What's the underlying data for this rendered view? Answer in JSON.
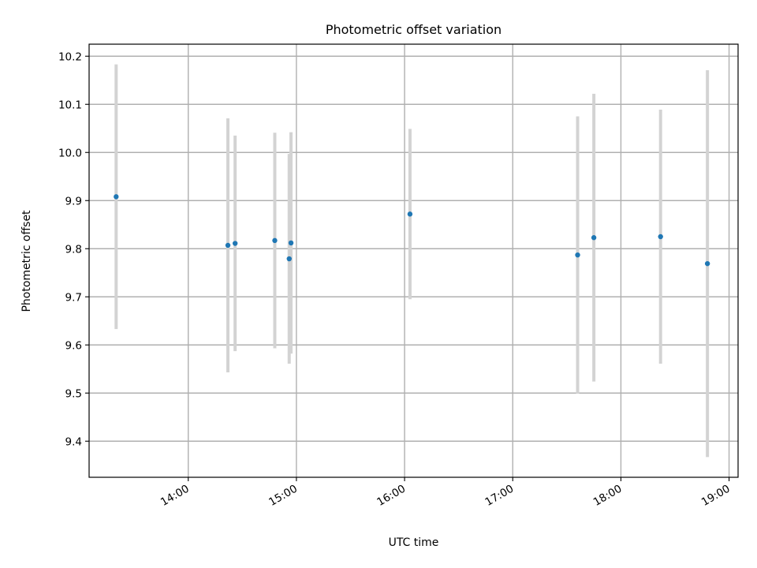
{
  "chart_data": {
    "type": "scatter",
    "title": "Photometric offset variation",
    "xlabel": "UTC time",
    "ylabel": "Photometric offset",
    "x_ticks": [
      "14:00",
      "15:00",
      "16:00",
      "17:00",
      "18:00",
      "19:00"
    ],
    "y_ticks": [
      "9.4",
      "9.5",
      "9.6",
      "9.7",
      "9.8",
      "9.9",
      "10.0",
      "10.1",
      "10.2"
    ],
    "xlim": [
      "13:05",
      "19:05"
    ],
    "ylim": [
      9.325,
      10.225
    ],
    "grid": true,
    "error_bar_color": "#d3d3d3",
    "marker_color": "#1f77b4",
    "points": [
      {
        "time": "13:20",
        "y": 9.908,
        "err_low": 9.633,
        "err_high": 10.183
      },
      {
        "time": "14:22",
        "y": 9.807,
        "err_low": 9.543,
        "err_high": 10.071
      },
      {
        "time": "14:26",
        "y": 9.811,
        "err_low": 9.587,
        "err_high": 10.035
      },
      {
        "time": "14:48",
        "y": 9.817,
        "err_low": 9.593,
        "err_high": 10.041
      },
      {
        "time": "14:56",
        "y": 9.779,
        "err_low": 9.561,
        "err_high": 9.997
      },
      {
        "time": "14:57",
        "y": 9.812,
        "err_low": 9.582,
        "err_high": 10.042
      },
      {
        "time": "16:03",
        "y": 9.872,
        "err_low": 9.695,
        "err_high": 10.049
      },
      {
        "time": "17:36",
        "y": 9.787,
        "err_low": 9.499,
        "err_high": 10.075
      },
      {
        "time": "17:45",
        "y": 9.823,
        "err_low": 9.524,
        "err_high": 10.122
      },
      {
        "time": "18:22",
        "y": 9.825,
        "err_low": 9.561,
        "err_high": 10.089
      },
      {
        "time": "18:48",
        "y": 9.769,
        "err_low": 9.367,
        "err_high": 10.171
      }
    ]
  }
}
